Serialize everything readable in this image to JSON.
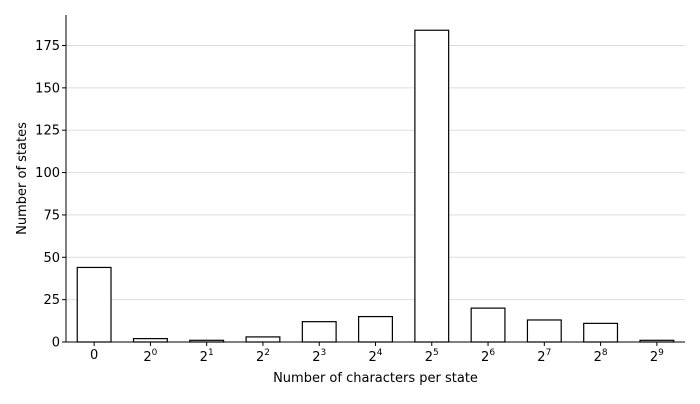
{
  "chart_data": {
    "type": "bar",
    "categories": [
      {
        "base": "0",
        "exp": ""
      },
      {
        "base": "2",
        "exp": "0"
      },
      {
        "base": "2",
        "exp": "1"
      },
      {
        "base": "2",
        "exp": "2"
      },
      {
        "base": "2",
        "exp": "3"
      },
      {
        "base": "2",
        "exp": "4"
      },
      {
        "base": "2",
        "exp": "5"
      },
      {
        "base": "2",
        "exp": "6"
      },
      {
        "base": "2",
        "exp": "7"
      },
      {
        "base": "2",
        "exp": "8"
      },
      {
        "base": "2",
        "exp": "9"
      }
    ],
    "values": [
      44,
      2,
      1,
      3,
      12,
      15,
      184,
      20,
      13,
      11,
      1
    ],
    "xlabel": "Number of characters per state",
    "ylabel": "Number of states",
    "ylim": [
      0,
      193
    ],
    "yticks": [
      0,
      25,
      50,
      75,
      100,
      125,
      150,
      175
    ],
    "grid": "horizontal",
    "colors": {
      "bar_fill": "#ffffff",
      "bar_stroke": "#000000",
      "grid": "#dddddd",
      "axis": "#000000"
    }
  }
}
